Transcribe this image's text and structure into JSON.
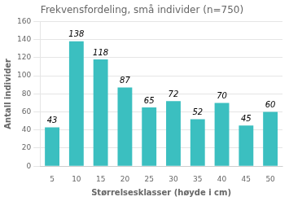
{
  "chart_data": {
    "type": "bar",
    "title": "Frekvensfordeling, små individer (n=750)",
    "xlabel": "Størrelsesklasser (høyde i cm)",
    "ylabel": "Antall individer",
    "categories": [
      5,
      10,
      15,
      20,
      25,
      30,
      35,
      40,
      45,
      50
    ],
    "values": [
      43,
      138,
      118,
      87,
      65,
      72,
      52,
      70,
      45,
      60
    ],
    "color": "#3bbfc0",
    "ylim": [
      0,
      160
    ],
    "yticks": [
      0,
      20,
      40,
      60,
      80,
      100,
      120,
      140,
      160
    ],
    "grid": true,
    "data_labels": true
  }
}
